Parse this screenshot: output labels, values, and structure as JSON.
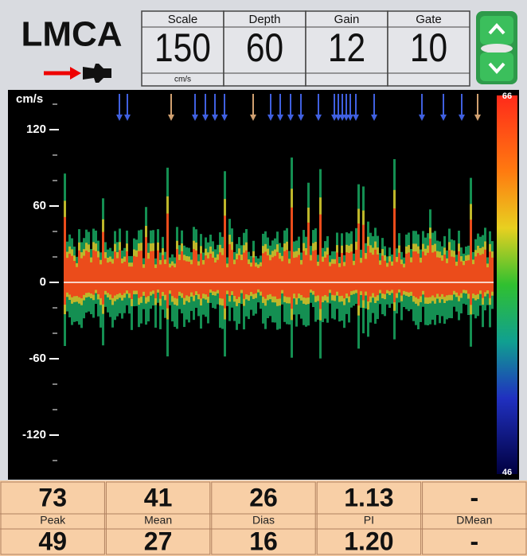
{
  "header": {
    "title": "LMCA",
    "params": [
      {
        "label": "Scale",
        "value": "150",
        "unit": "cm/s"
      },
      {
        "label": "Depth",
        "value": "60"
      },
      {
        "label": "Gain",
        "value": "12"
      },
      {
        "label": "Gate",
        "value": "10"
      }
    ]
  },
  "spectrum": {
    "unit": "cm/s",
    "ylim": [
      -150,
      150
    ],
    "yticks": [
      120,
      60,
      0,
      -60,
      -120
    ],
    "colorbar": {
      "top": "66",
      "bottom": "46"
    }
  },
  "table": {
    "labels": [
      "Peak",
      "Mean",
      "Dias",
      "PI",
      "DMean"
    ],
    "rows": [
      [
        "73",
        "41",
        "26",
        "1.13",
        "-"
      ],
      [
        "49",
        "27",
        "16",
        "1.20",
        "-"
      ]
    ]
  }
}
